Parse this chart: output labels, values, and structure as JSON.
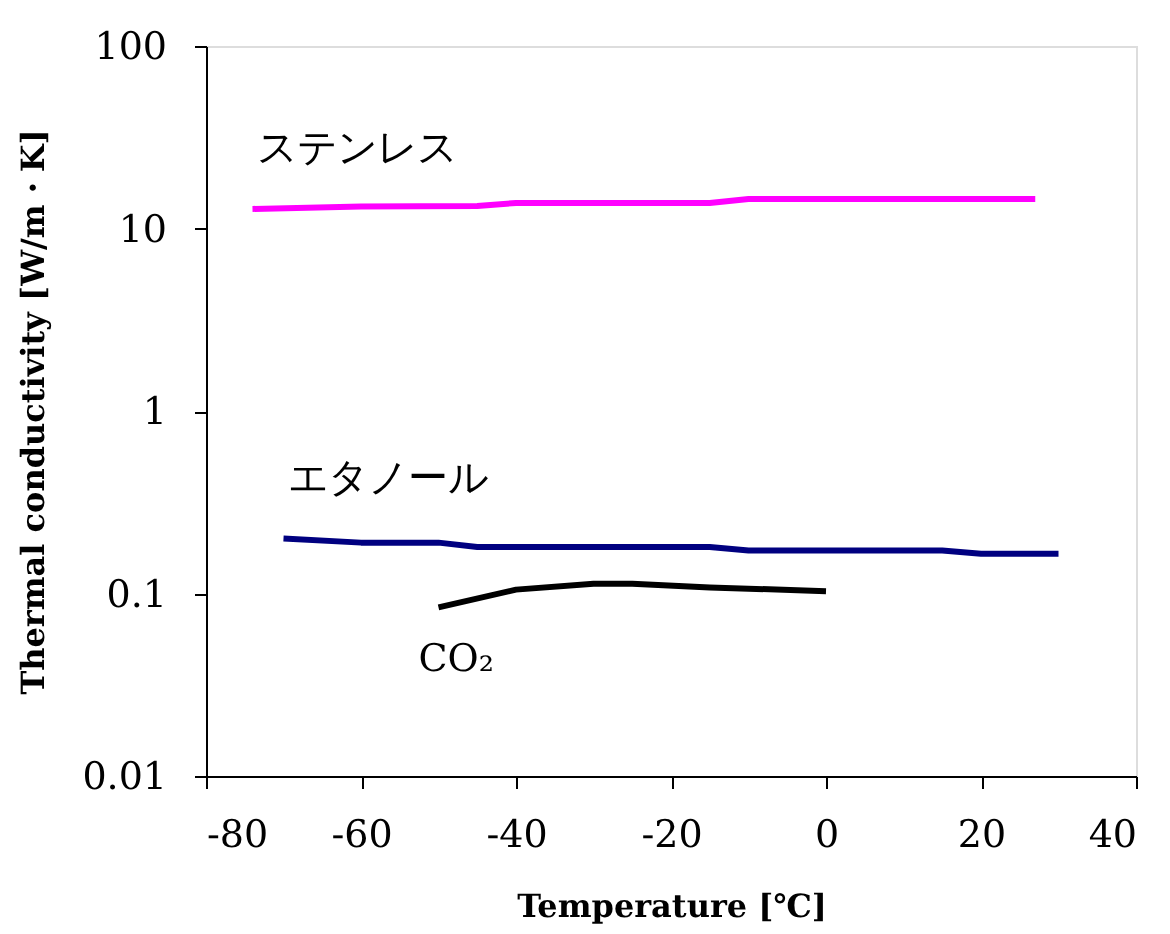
{
  "chart_data": {
    "type": "line",
    "xlabel": "Temperature [℃]",
    "ylabel": "Thermal conductivity [W/m・K]",
    "xlim": [
      -80,
      40
    ],
    "xticks": [
      -80,
      -60,
      -40,
      -20,
      0,
      20,
      40
    ],
    "ylim": [
      0.01,
      100
    ],
    "yticks": [
      0.01,
      0.1,
      1,
      10,
      100
    ],
    "log": "y",
    "grid": false,
    "legend": false,
    "marker": "none",
    "line_style": "solid",
    "series": [
      {
        "name": "ステンレス",
        "color": "#ff00ff",
        "x": [
          -74,
          -60,
          -45,
          -40,
          -15,
          -10,
          27
        ],
        "values": [
          12.8,
          13.2,
          13.3,
          13.8,
          13.8,
          14.5,
          14.5
        ]
      },
      {
        "name": "エタノール",
        "color": "#000080",
        "x": [
          -70,
          -60,
          -50,
          -45,
          -15,
          -10,
          15,
          20,
          30
        ],
        "values": [
          0.2,
          0.19,
          0.19,
          0.18,
          0.18,
          0.172,
          0.172,
          0.165,
          0.165
        ]
      },
      {
        "name": "CO₂",
        "color": "#000000",
        "x": [
          -50,
          -40,
          -30,
          -25,
          -15,
          0
        ],
        "values": [
          0.084,
          0.105,
          0.113,
          0.113,
          0.108,
          0.103
        ]
      }
    ]
  }
}
